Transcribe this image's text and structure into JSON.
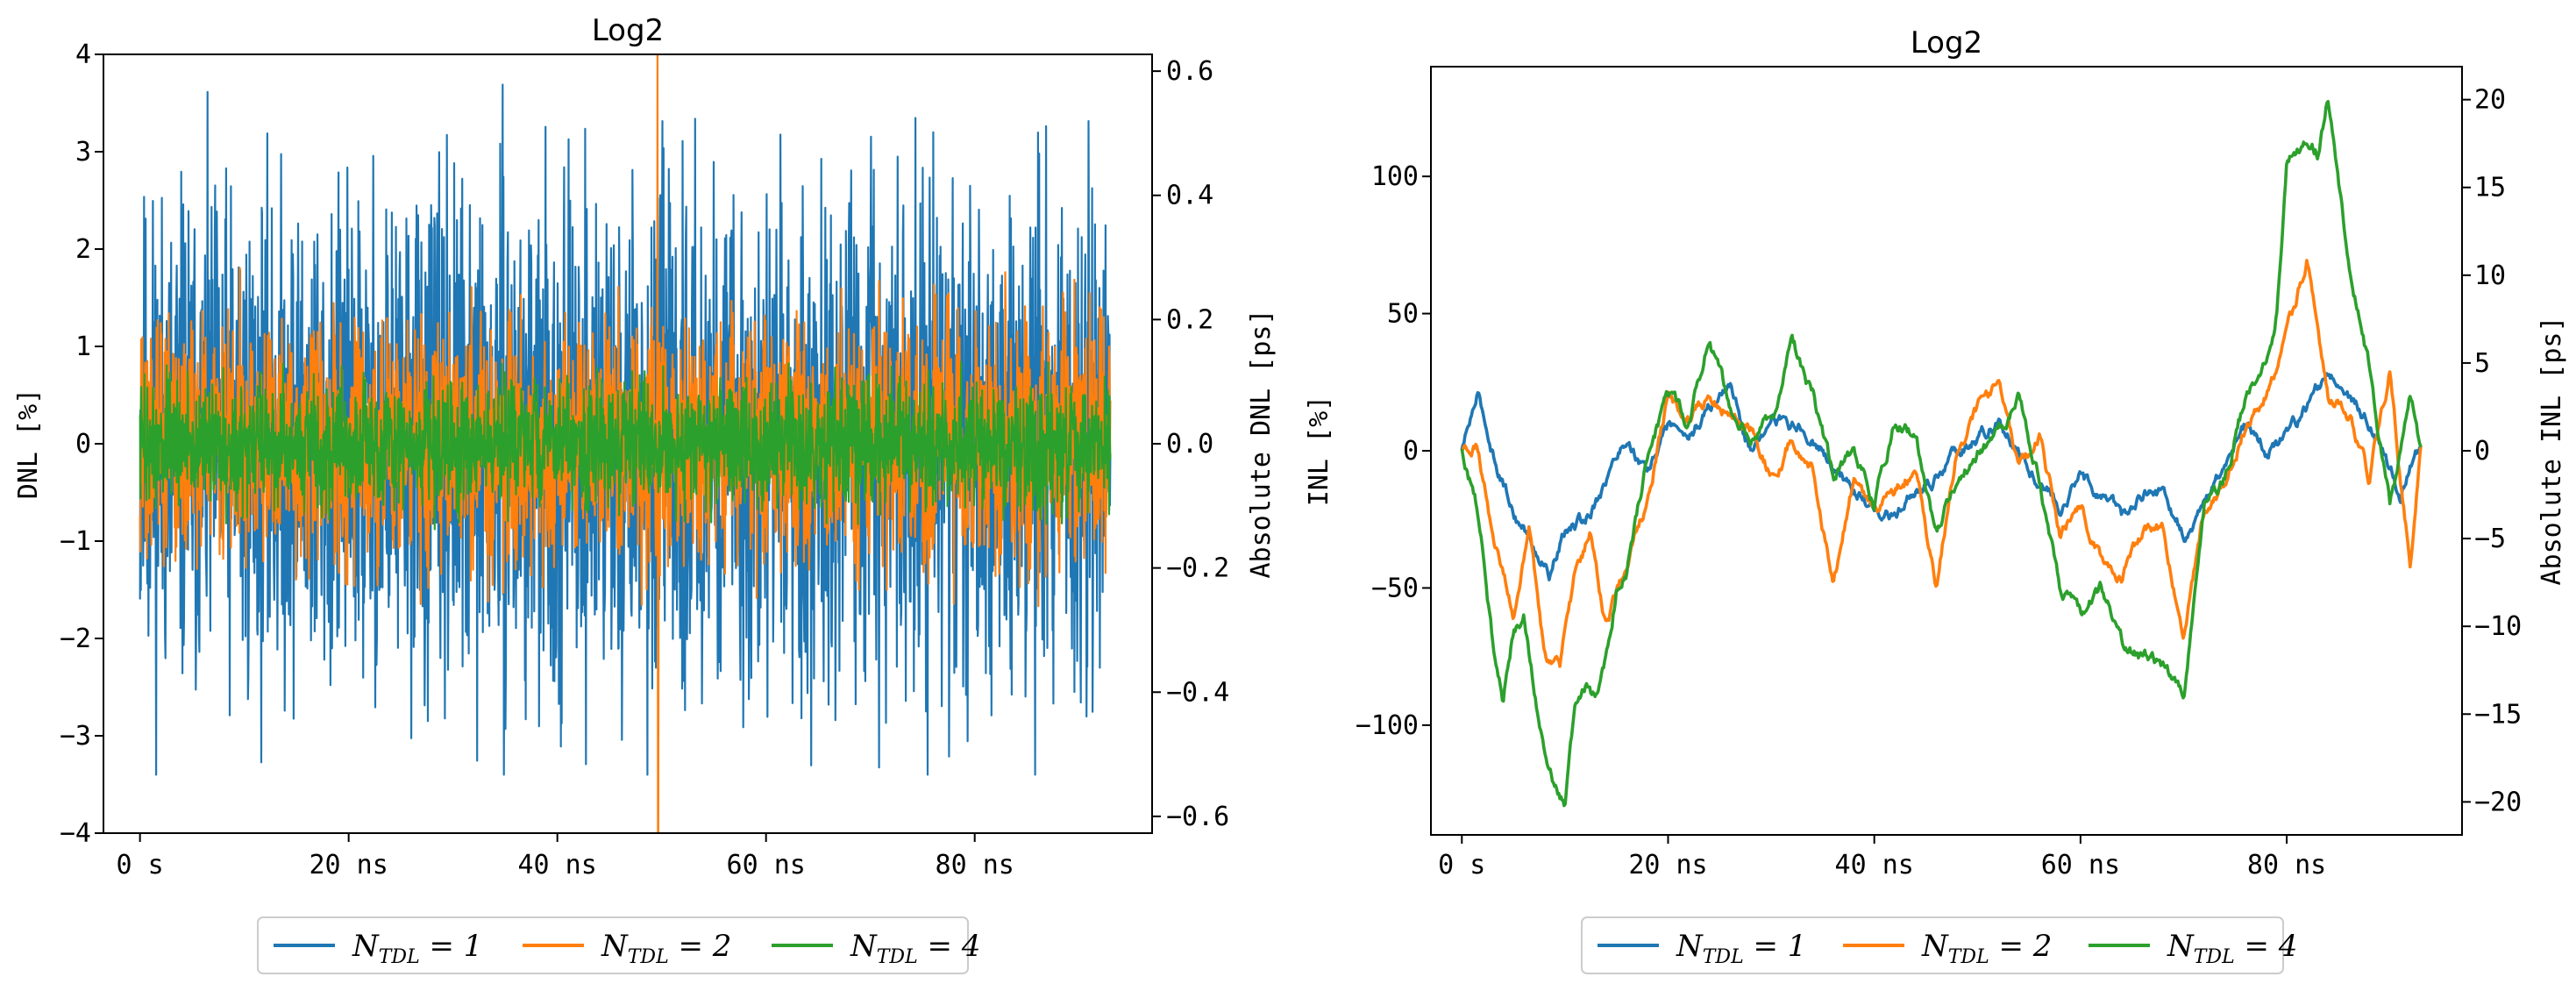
{
  "colors": {
    "series1": "#1f77b4",
    "series2": "#ff7f0e",
    "series3": "#2ca02c"
  },
  "chart_data": [
    {
      "type": "line",
      "title": "Log2",
      "xlabel": "",
      "ylabel": "DNL [%]",
      "ylabel_right": "Absolute DNL [ps]",
      "xlim": [
        -3.5,
        97
      ],
      "ylim": [
        -4,
        4
      ],
      "ylim_right": [
        -0.627,
        0.627
      ],
      "xticks": [
        0,
        20,
        40,
        60,
        80
      ],
      "xtick_labels": [
        "0 s",
        "20 ns",
        "40 ns",
        "60 ns",
        "80 ns"
      ],
      "yticks": [
        -4,
        -3,
        -2,
        -1,
        0,
        1,
        2,
        3,
        4
      ],
      "ytick_labels": [
        "−4",
        "−3",
        "−2",
        "−1",
        "0",
        "1",
        "2",
        "3",
        "4"
      ],
      "yticks_right": [
        -0.6,
        -0.4,
        -0.2,
        0.0,
        0.2,
        0.4,
        0.6
      ],
      "ytick_labels_right": [
        "−0.6",
        "−0.4",
        "−0.2",
        "0.0",
        "0.2",
        "0.4",
        "0.6"
      ],
      "legend": "bottom-center",
      "series": [
        {
          "name": "N_TDL = 1",
          "label_main": "N",
          "label_sub": "TDL",
          "label_rest": " = 1",
          "x_range": [
            0,
            93
          ],
          "noise_amplitude": 2.2,
          "clip": [
            -3.4,
            3.8
          ]
        },
        {
          "name": "N_TDL = 2",
          "label_main": "N",
          "label_sub": "TDL",
          "label_rest": " = 2",
          "x_range": [
            0,
            93
          ],
          "noise_amplitude": 1.1,
          "clip": [
            -3.2,
            2.5
          ],
          "spike": {
            "x": 49.6,
            "ymin": -4.0,
            "ymax": 4.0
          }
        },
        {
          "name": "N_TDL = 4",
          "label_main": "N",
          "label_sub": "TDL",
          "label_rest": " = 4",
          "x_range": [
            0,
            93
          ],
          "noise_amplitude": 0.55,
          "clip": [
            -1.6,
            2.3
          ]
        }
      ]
    },
    {
      "type": "line",
      "title": "Log2",
      "xlabel": "",
      "ylabel": "INL [%]",
      "ylabel_right": "Absolute INL [ps]",
      "xlim": [
        -3,
        97
      ],
      "ylim": [
        -140,
        140
      ],
      "ylim_right": [
        -21.88,
        21.88
      ],
      "xticks": [
        0,
        20,
        40,
        60,
        80
      ],
      "xtick_labels": [
        "0 s",
        "20 ns",
        "40 ns",
        "60 ns",
        "80 ns"
      ],
      "yticks": [
        -100,
        -50,
        0,
        50,
        100
      ],
      "ytick_labels": [
        "−100",
        "−50",
        "0",
        "50",
        "100"
      ],
      "yticks_right": [
        -20,
        -15,
        -10,
        -5,
        0,
        5,
        10,
        15,
        20
      ],
      "ytick_labels_right": [
        "−20",
        "−15",
        "−10",
        "−5",
        "0",
        "5",
        "10",
        "15",
        "20"
      ],
      "legend": "bottom-center",
      "series": [
        {
          "name": "N_TDL = 1",
          "label_main": "N",
          "label_sub": "TDL",
          "label_rest": " = 1",
          "x": [
            0,
            1.5,
            3,
            5,
            7,
            8.5,
            10,
            12,
            14,
            16,
            18,
            20,
            22,
            24,
            26,
            28,
            30,
            32,
            34,
            36,
            38,
            40,
            42,
            44,
            46,
            48,
            50,
            52,
            54,
            56,
            58,
            60,
            62,
            64,
            66,
            68,
            70,
            72,
            74,
            76,
            78,
            80,
            82,
            84,
            86,
            88,
            90,
            91,
            92,
            93
          ],
          "y": [
            0,
            20,
            0,
            -22,
            -35,
            -45,
            -30,
            -25,
            -10,
            5,
            -10,
            10,
            5,
            15,
            25,
            0,
            15,
            10,
            5,
            -5,
            -15,
            -20,
            -25,
            -15,
            -10,
            0,
            5,
            10,
            0,
            -10,
            -20,
            -10,
            -15,
            -25,
            -15,
            -15,
            -30,
            -20,
            -5,
            10,
            0,
            5,
            15,
            30,
            20,
            10,
            -5,
            -15,
            -5,
            0
          ]
        },
        {
          "name": "N_TDL = 2",
          "label_main": "N",
          "label_sub": "TDL",
          "label_rest": " = 2",
          "x": [
            0,
            1.5,
            3,
            5,
            6.5,
            8,
            9.5,
            11,
            12.5,
            14,
            16,
            18,
            20,
            22,
            24,
            26,
            28,
            30,
            32,
            34,
            36,
            38,
            40,
            42,
            44,
            46,
            48,
            50,
            52,
            54,
            56,
            58,
            60,
            62,
            64,
            66,
            68,
            70,
            72,
            74,
            76,
            78,
            80,
            82,
            84,
            86,
            88,
            90,
            91,
            92,
            93
          ],
          "y": [
            0,
            5,
            -30,
            -60,
            -30,
            -75,
            -80,
            -45,
            -30,
            -65,
            -40,
            -20,
            20,
            10,
            20,
            15,
            10,
            -10,
            5,
            -5,
            -50,
            -10,
            -25,
            -15,
            -5,
            -50,
            0,
            15,
            25,
            -10,
            5,
            -30,
            -20,
            -40,
            -45,
            -30,
            -30,
            -65,
            -20,
            -10,
            10,
            20,
            40,
            70,
            20,
            15,
            -10,
            30,
            -10,
            -40,
            0
          ]
        },
        {
          "name": "N_TDL = 4",
          "label_main": "N",
          "label_sub": "TDL",
          "label_rest": " = 4",
          "x": [
            0,
            1.5,
            3,
            4,
            5,
            6,
            7,
            8,
            9,
            10,
            11,
            12,
            13,
            14,
            15,
            16,
            18,
            20,
            22,
            24,
            26,
            28,
            30,
            32,
            34,
            36,
            38,
            40,
            42,
            44,
            46,
            48,
            50,
            52,
            54,
            56,
            58,
            60,
            62,
            64,
            66,
            68,
            70,
            72,
            74,
            76,
            78,
            79,
            80,
            81,
            82,
            83,
            84,
            85,
            86,
            87,
            88,
            90,
            92,
            93
          ],
          "y": [
            0,
            -20,
            -70,
            -90,
            -65,
            -60,
            -85,
            -110,
            -120,
            -130,
            -95,
            -85,
            -90,
            -75,
            -50,
            -45,
            0,
            20,
            10,
            40,
            15,
            5,
            10,
            40,
            20,
            -10,
            0,
            -20,
            10,
            5,
            -30,
            -10,
            0,
            5,
            20,
            -10,
            -50,
            -60,
            -50,
            -70,
            -75,
            -80,
            -90,
            -20,
            -10,
            20,
            30,
            50,
            105,
            110,
            115,
            110,
            130,
            100,
            70,
            50,
            30,
            -20,
            20,
            0
          ]
        }
      ]
    }
  ]
}
